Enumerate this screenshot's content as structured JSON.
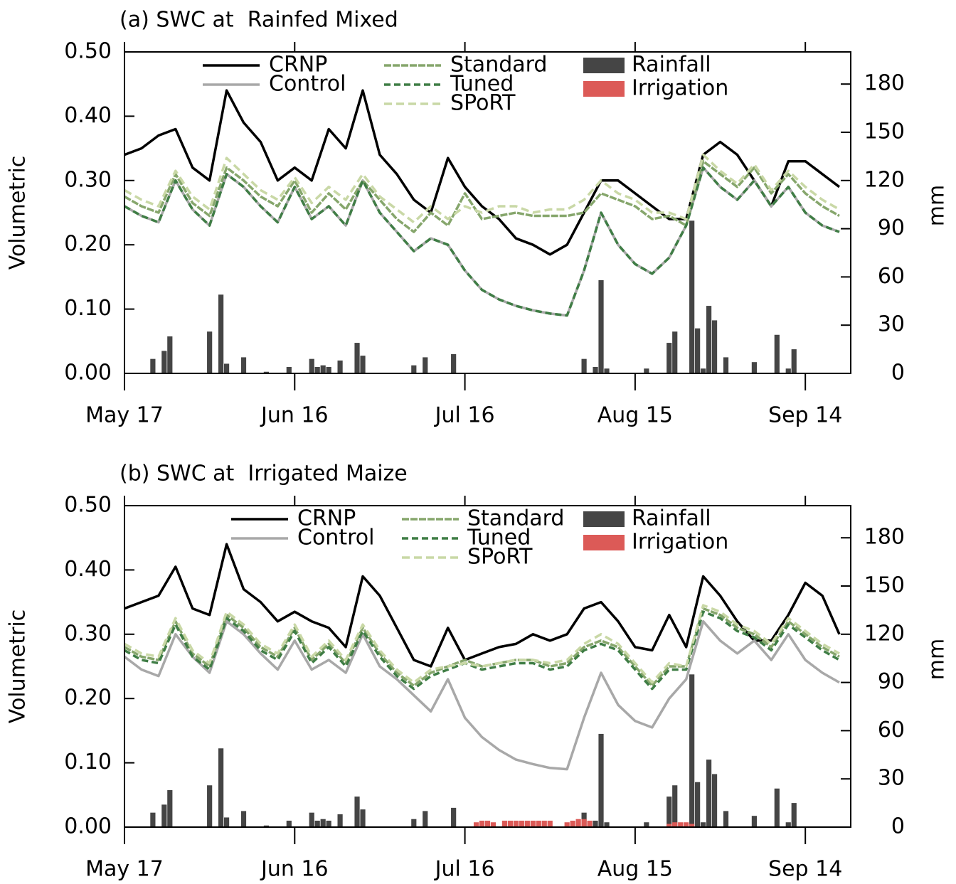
{
  "chart_data": [
    {
      "type": "line",
      "title": "(a) SWC at  Rainfed Mixed",
      "ylabel": "Volumetric",
      "y2label": "mm",
      "x": [
        0,
        3,
        6,
        9,
        12,
        15,
        18,
        21,
        24,
        27,
        30,
        33,
        36,
        39,
        42,
        45,
        48,
        51,
        54,
        57,
        60,
        63,
        66,
        69,
        72,
        75,
        78,
        81,
        84,
        87,
        90,
        93,
        96,
        99,
        102,
        105,
        108,
        111,
        114,
        117,
        120,
        123,
        126
      ],
      "xlim": [
        0,
        128
      ],
      "xticks": [
        {
          "value": 0,
          "label": "May 17"
        },
        {
          "value": 30,
          "label": "Jun 16"
        },
        {
          "value": 60,
          "label": "Jul 16"
        },
        {
          "value": 90,
          "label": "Aug 15"
        },
        {
          "value": 120,
          "label": "Sep 14"
        }
      ],
      "ylim": [
        0,
        0.5
      ],
      "yticks": [
        {
          "value": 0,
          "label": "0.00"
        },
        {
          "value": 0.1,
          "label": "0.10"
        },
        {
          "value": 0.2,
          "label": "0.20"
        },
        {
          "value": 0.3,
          "label": "0.30"
        },
        {
          "value": 0.4,
          "label": "0.40"
        },
        {
          "value": 0.5,
          "label": "0.50"
        }
      ],
      "y2lim": [
        0,
        200
      ],
      "y2ticks": [
        0,
        30,
        60,
        90,
        120,
        150,
        180
      ],
      "series": [
        {
          "name": "CRNP",
          "color": "#000000",
          "values": [
            0.34,
            0.35,
            0.37,
            0.38,
            0.32,
            0.3,
            0.44,
            0.39,
            0.36,
            0.3,
            0.32,
            0.3,
            0.38,
            0.35,
            0.44,
            0.34,
            0.31,
            0.27,
            0.25,
            0.335,
            0.29,
            0.26,
            0.24,
            0.21,
            0.2,
            0.185,
            0.2,
            0.25,
            0.3,
            0.3,
            0.28,
            0.26,
            0.24,
            0.24,
            0.34,
            0.36,
            0.34,
            0.3,
            0.26,
            0.33,
            0.33,
            0.31,
            0.29
          ]
        },
        {
          "name": "Control",
          "color": "#a8a8a8",
          "values": [
            0.26,
            0.245,
            0.235,
            0.3,
            0.255,
            0.23,
            0.31,
            0.29,
            0.26,
            0.235,
            0.29,
            0.24,
            0.26,
            0.23,
            0.3,
            0.25,
            0.22,
            0.19,
            0.21,
            0.2,
            0.16,
            0.13,
            0.115,
            0.105,
            0.098,
            0.093,
            0.09,
            0.16,
            0.25,
            0.2,
            0.17,
            0.155,
            0.18,
            0.23,
            0.32,
            0.29,
            0.27,
            0.3,
            0.26,
            0.29,
            0.25,
            0.23,
            0.22
          ]
        },
        {
          "name": "Standard",
          "color": "#86a66c",
          "values": [
            0.275,
            0.26,
            0.25,
            0.31,
            0.265,
            0.245,
            0.32,
            0.3,
            0.275,
            0.26,
            0.3,
            0.25,
            0.28,
            0.255,
            0.3,
            0.27,
            0.24,
            0.22,
            0.25,
            0.23,
            0.28,
            0.24,
            0.245,
            0.25,
            0.245,
            0.245,
            0.245,
            0.25,
            0.28,
            0.27,
            0.26,
            0.24,
            0.245,
            0.23,
            0.33,
            0.31,
            0.29,
            0.32,
            0.28,
            0.31,
            0.28,
            0.26,
            0.245
          ]
        },
        {
          "name": "Tuned",
          "color": "#3f7d45",
          "values": [
            0.26,
            0.245,
            0.235,
            0.3,
            0.255,
            0.23,
            0.31,
            0.29,
            0.26,
            0.235,
            0.29,
            0.24,
            0.26,
            0.23,
            0.3,
            0.25,
            0.22,
            0.19,
            0.21,
            0.2,
            0.16,
            0.13,
            0.115,
            0.105,
            0.098,
            0.093,
            0.09,
            0.16,
            0.25,
            0.2,
            0.17,
            0.155,
            0.18,
            0.23,
            0.32,
            0.29,
            0.27,
            0.3,
            0.26,
            0.29,
            0.25,
            0.23,
            0.22
          ]
        },
        {
          "name": "SPoRT",
          "color": "#c9d8a6",
          "values": [
            0.285,
            0.27,
            0.26,
            0.315,
            0.275,
            0.255,
            0.335,
            0.31,
            0.285,
            0.27,
            0.305,
            0.265,
            0.29,
            0.27,
            0.31,
            0.275,
            0.255,
            0.235,
            0.26,
            0.24,
            0.26,
            0.25,
            0.26,
            0.26,
            0.25,
            0.255,
            0.255,
            0.27,
            0.3,
            0.28,
            0.27,
            0.25,
            0.25,
            0.24,
            0.34,
            0.315,
            0.295,
            0.325,
            0.285,
            0.315,
            0.29,
            0.27,
            0.255
          ]
        },
        {
          "name": "Rainfall",
          "type": "bar",
          "axis": "y2",
          "color": "#454545",
          "x": [
            5,
            7,
            8,
            15,
            17,
            18,
            21,
            25,
            29,
            33,
            34,
            35,
            36,
            38,
            41,
            42,
            51,
            53,
            58,
            81,
            83,
            84,
            85,
            92,
            96,
            97,
            100,
            101,
            102,
            103,
            104,
            106,
            111,
            115,
            117,
            118
          ],
          "values": [
            9,
            14,
            23,
            26,
            49,
            6,
            10,
            1,
            4,
            9,
            4,
            5,
            4,
            8,
            19,
            11,
            5,
            10,
            12,
            9,
            4,
            58,
            3,
            3,
            19,
            26,
            95,
            28,
            3,
            42,
            33,
            10,
            7,
            24,
            3,
            15
          ]
        },
        {
          "name": "Irrigation",
          "type": "bar",
          "axis": "y2",
          "color": "#dc5a57",
          "x": [],
          "values": []
        }
      ]
    },
    {
      "type": "line",
      "title": "(b) SWC at  Irrigated Maize",
      "ylabel": "Volumetric",
      "y2label": "mm",
      "x": [
        0,
        3,
        6,
        9,
        12,
        15,
        18,
        21,
        24,
        27,
        30,
        33,
        36,
        39,
        42,
        45,
        48,
        51,
        54,
        57,
        60,
        63,
        66,
        69,
        72,
        75,
        78,
        81,
        84,
        87,
        90,
        93,
        96,
        99,
        102,
        105,
        108,
        111,
        114,
        117,
        120,
        123,
        126
      ],
      "xlim": [
        0,
        128
      ],
      "xticks": [
        {
          "value": 0,
          "label": "May 17"
        },
        {
          "value": 30,
          "label": "Jun 16"
        },
        {
          "value": 60,
          "label": "Jul 16"
        },
        {
          "value": 90,
          "label": "Aug 15"
        },
        {
          "value": 120,
          "label": "Sep 14"
        }
      ],
      "ylim": [
        0,
        0.5
      ],
      "yticks": [
        {
          "value": 0,
          "label": "0.00"
        },
        {
          "value": 0.1,
          "label": "0.10"
        },
        {
          "value": 0.2,
          "label": "0.20"
        },
        {
          "value": 0.3,
          "label": "0.30"
        },
        {
          "value": 0.4,
          "label": "0.40"
        },
        {
          "value": 0.5,
          "label": "0.50"
        }
      ],
      "y2lim": [
        0,
        200
      ],
      "y2ticks": [
        0,
        30,
        60,
        90,
        120,
        150,
        180
      ],
      "series": [
        {
          "name": "CRNP",
          "color": "#000000",
          "values": [
            0.34,
            0.35,
            0.36,
            0.405,
            0.34,
            0.33,
            0.44,
            0.37,
            0.35,
            0.32,
            0.335,
            0.32,
            0.31,
            0.28,
            0.39,
            0.36,
            0.31,
            0.26,
            0.25,
            0.31,
            0.26,
            0.27,
            0.28,
            0.285,
            0.3,
            0.29,
            0.3,
            0.34,
            0.35,
            0.32,
            0.28,
            0.275,
            0.33,
            0.28,
            0.39,
            0.36,
            0.32,
            0.29,
            0.29,
            0.33,
            0.38,
            0.36,
            0.3
          ]
        },
        {
          "name": "Control",
          "color": "#a8a8a8",
          "values": [
            0.265,
            0.245,
            0.235,
            0.3,
            0.265,
            0.24,
            0.32,
            0.3,
            0.27,
            0.245,
            0.29,
            0.245,
            0.26,
            0.24,
            0.3,
            0.25,
            0.23,
            0.205,
            0.18,
            0.23,
            0.17,
            0.14,
            0.12,
            0.105,
            0.098,
            0.092,
            0.09,
            0.17,
            0.24,
            0.19,
            0.165,
            0.155,
            0.2,
            0.23,
            0.32,
            0.29,
            0.27,
            0.29,
            0.26,
            0.3,
            0.26,
            0.24,
            0.225
          ]
        },
        {
          "name": "Standard",
          "color": "#86a66c",
          "values": [
            0.28,
            0.265,
            0.26,
            0.32,
            0.27,
            0.25,
            0.33,
            0.31,
            0.28,
            0.265,
            0.31,
            0.26,
            0.285,
            0.255,
            0.31,
            0.27,
            0.24,
            0.22,
            0.24,
            0.25,
            0.26,
            0.25,
            0.255,
            0.26,
            0.26,
            0.25,
            0.255,
            0.28,
            0.29,
            0.28,
            0.25,
            0.22,
            0.25,
            0.25,
            0.34,
            0.33,
            0.31,
            0.3,
            0.28,
            0.32,
            0.3,
            0.28,
            0.265
          ]
        },
        {
          "name": "Tuned",
          "color": "#3f7d45",
          "values": [
            0.275,
            0.26,
            0.255,
            0.315,
            0.265,
            0.245,
            0.325,
            0.305,
            0.275,
            0.26,
            0.305,
            0.255,
            0.28,
            0.25,
            0.305,
            0.265,
            0.235,
            0.215,
            0.235,
            0.245,
            0.255,
            0.245,
            0.25,
            0.255,
            0.255,
            0.245,
            0.25,
            0.275,
            0.285,
            0.275,
            0.245,
            0.215,
            0.245,
            0.245,
            0.335,
            0.325,
            0.305,
            0.295,
            0.275,
            0.315,
            0.295,
            0.275,
            0.26
          ]
        },
        {
          "name": "SPoRT",
          "color": "#c9d8a6",
          "values": [
            0.285,
            0.27,
            0.265,
            0.325,
            0.275,
            0.255,
            0.335,
            0.315,
            0.285,
            0.27,
            0.315,
            0.265,
            0.29,
            0.26,
            0.315,
            0.275,
            0.245,
            0.225,
            0.245,
            0.25,
            0.255,
            0.25,
            0.255,
            0.26,
            0.26,
            0.255,
            0.26,
            0.285,
            0.3,
            0.285,
            0.255,
            0.225,
            0.255,
            0.25,
            0.345,
            0.335,
            0.315,
            0.305,
            0.285,
            0.325,
            0.305,
            0.285,
            0.27
          ]
        },
        {
          "name": "Rainfall",
          "type": "bar",
          "axis": "y2",
          "color": "#454545",
          "x": [
            5,
            7,
            8,
            15,
            17,
            18,
            21,
            25,
            29,
            33,
            34,
            35,
            36,
            38,
            41,
            42,
            51,
            53,
            58,
            81,
            83,
            84,
            85,
            92,
            96,
            97,
            100,
            101,
            102,
            103,
            104,
            106,
            111,
            115,
            117,
            118
          ],
          "values": [
            9,
            14,
            23,
            26,
            49,
            6,
            10,
            1,
            4,
            9,
            4,
            5,
            4,
            8,
            19,
            11,
            5,
            10,
            12,
            9,
            4,
            58,
            3,
            3,
            19,
            26,
            95,
            28,
            3,
            42,
            33,
            10,
            7,
            24,
            3,
            15
          ]
        },
        {
          "name": "Irrigation",
          "type": "bar",
          "axis": "y2",
          "color": "#dc5a57",
          "x": [
            62,
            63,
            64,
            65,
            67,
            68,
            69,
            70,
            71,
            72,
            73,
            74,
            75,
            78,
            79,
            80,
            81,
            82,
            96,
            97,
            98,
            99,
            100
          ],
          "values": [
            3,
            4,
            4,
            3,
            4,
            4,
            4,
            4,
            4,
            4,
            4,
            4,
            4,
            3,
            4,
            5,
            5,
            4,
            2,
            3,
            3,
            3,
            2
          ]
        }
      ]
    }
  ]
}
